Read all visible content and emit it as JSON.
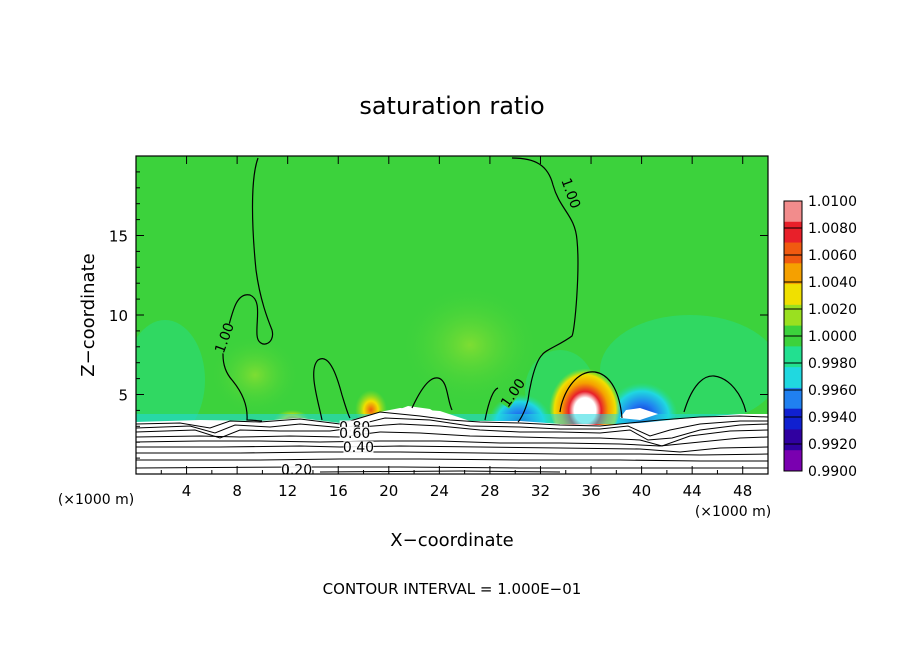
{
  "chart_data": {
    "type": "heatmap",
    "title": "saturation ratio",
    "xlabel": "X−coordinate",
    "ylabel": "Z−coordinate",
    "x_unit_left": "(×1000 m)",
    "x_unit_right": "(×1000 m)",
    "footer": "CONTOUR INTERVAL = 1.000E−01",
    "xlim": [
      0,
      50
    ],
    "ylim": [
      0,
      20
    ],
    "x_ticks": [
      4,
      8,
      12,
      16,
      20,
      24,
      28,
      32,
      36,
      40,
      44,
      48
    ],
    "y_ticks": [
      5,
      10,
      15
    ],
    "colorbar": {
      "labels": [
        "1.0100",
        "1.0080",
        "1.0060",
        "1.0040",
        "1.0020",
        "1.0000",
        "0.9980",
        "0.9960",
        "0.9940",
        "0.9920",
        "0.9900"
      ],
      "colors": [
        "#f28c8c",
        "#e8202a",
        "#f05a10",
        "#f5a000",
        "#f0e000",
        "#9ae020",
        "#3cd23c",
        "#22e090",
        "#20d8e0",
        "#2080f0",
        "#1020d0",
        "#3000a0",
        "#7a00b0"
      ]
    },
    "contour_labels": [
      {
        "text": "1.00",
        "x": 7.2,
        "y": 8.5
      },
      {
        "text": "1.00",
        "x": 34.2,
        "y": 17.6
      },
      {
        "text": "1.00",
        "x": 30.0,
        "y": 5.0
      },
      {
        "text": "0.80",
        "x": 17.3,
        "y": 2.8
      },
      {
        "text": "0.60",
        "x": 17.3,
        "y": 2.4
      },
      {
        "text": "0.40",
        "x": 17.6,
        "y": 1.5
      },
      {
        "text": "0.20",
        "x": 12.7,
        "y": 0.1
      }
    ],
    "cloud_cores": [
      {
        "x": 35.5,
        "y": 4.3,
        "sign": "positive"
      },
      {
        "x": 31.0,
        "y": 4.0,
        "sign": "negative"
      },
      {
        "x": 39.5,
        "y": 4.5,
        "sign": "negative"
      },
      {
        "x": 18.5,
        "y": 4.0,
        "sign": "positive"
      }
    ]
  }
}
